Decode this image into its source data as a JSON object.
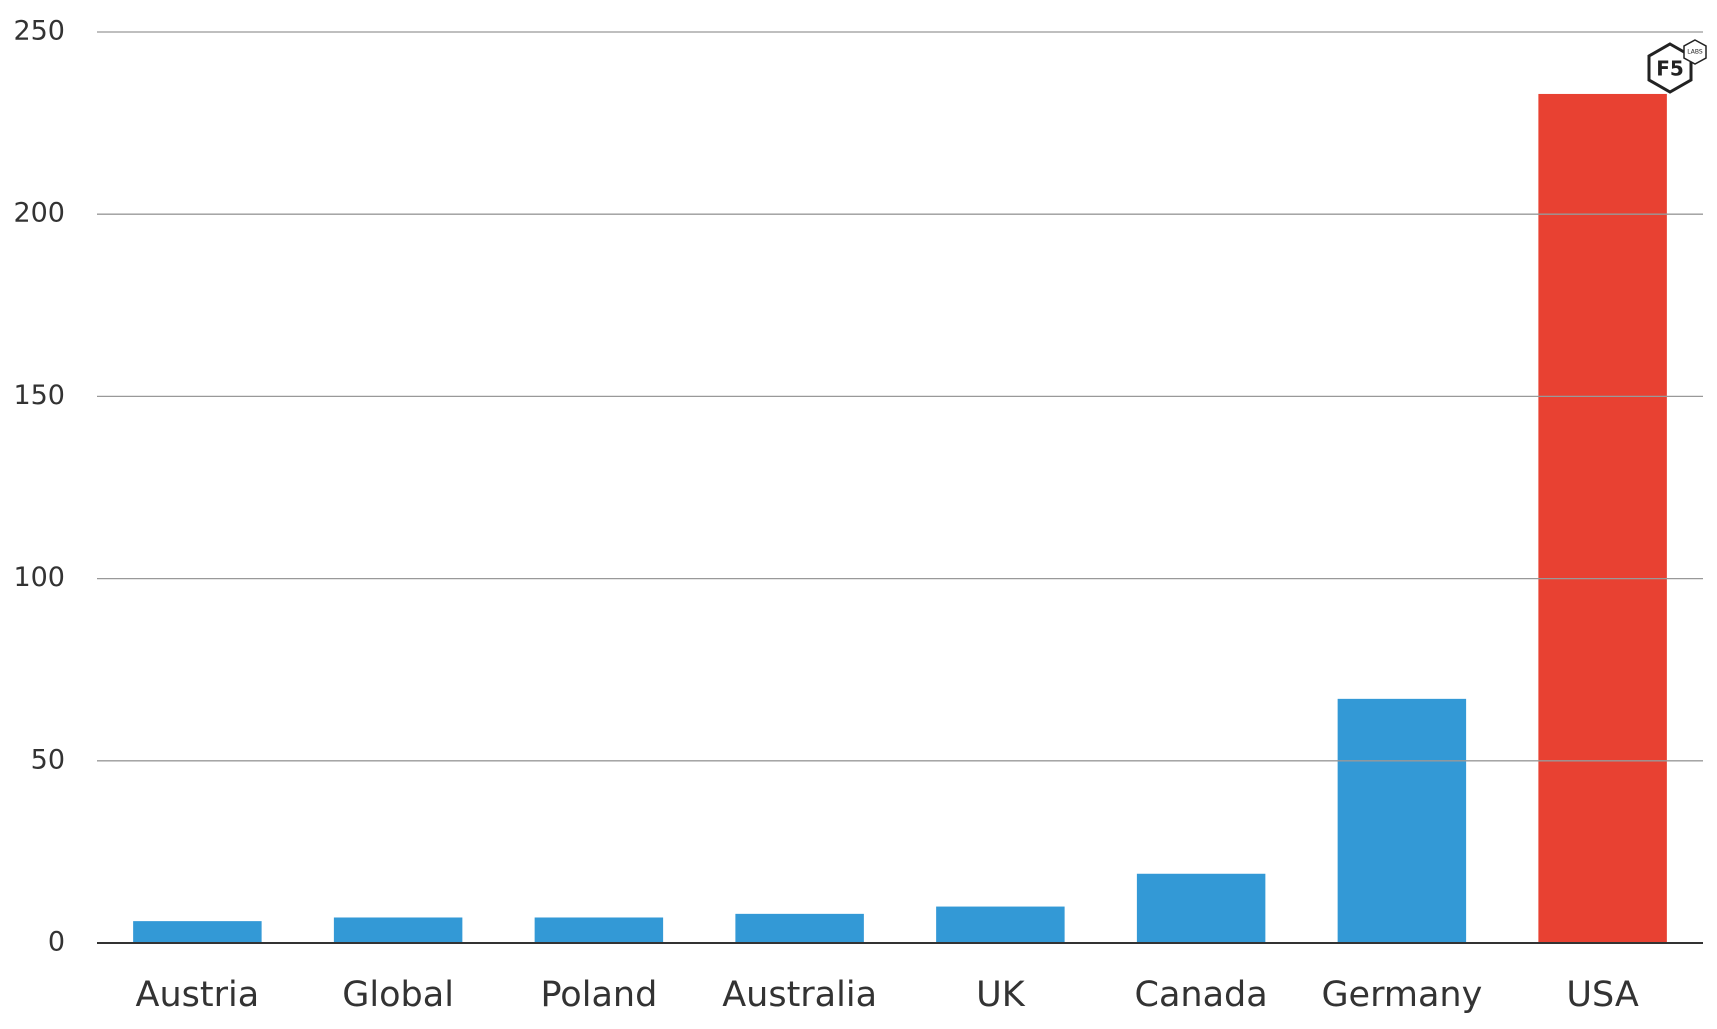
{
  "chart_data": {
    "type": "bar",
    "categories": [
      "Austria",
      "Global",
      "Poland",
      "Australia",
      "UK",
      "Canada",
      "Germany",
      "USA"
    ],
    "values": [
      6,
      7,
      7,
      8,
      10,
      19,
      67,
      233
    ],
    "colors": [
      "#3399d6",
      "#3399d6",
      "#3399d6",
      "#3399d6",
      "#3399d6",
      "#3399d6",
      "#3399d6",
      "#e84132"
    ],
    "ylim": [
      0,
      250
    ],
    "yticks": [
      0,
      50,
      100,
      150,
      200,
      250
    ],
    "grid": true,
    "logo": {
      "text": "F5",
      "subtext": "LABS"
    }
  }
}
